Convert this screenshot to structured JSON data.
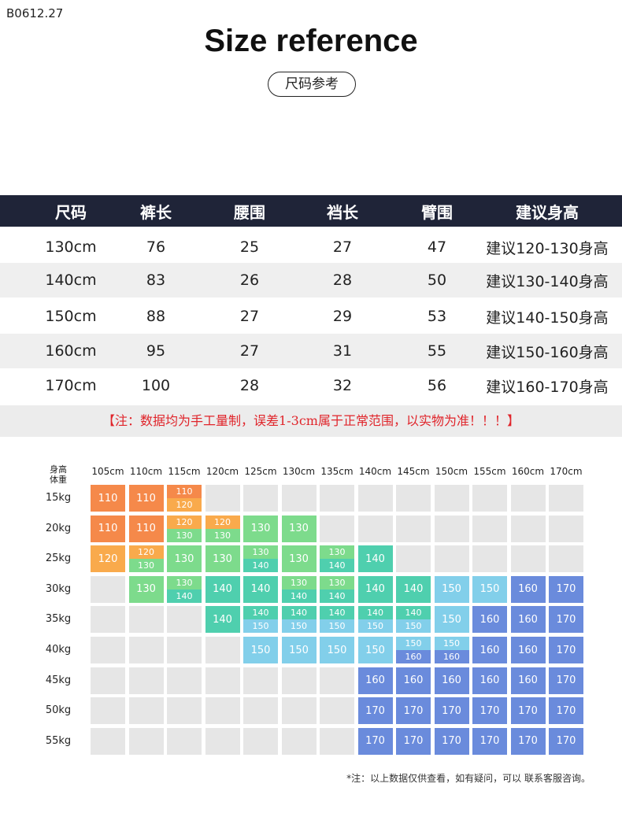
{
  "product_code": "B0612.27",
  "title": "Size reference",
  "subtitle": "尺码参考",
  "table": {
    "headers": [
      "尺码",
      "裤长",
      "腰围",
      "裆长",
      "臂围",
      "建议身高"
    ],
    "rows": [
      [
        "130cm",
        "76",
        "25",
        "27",
        "47",
        "建议120-130身高"
      ],
      [
        "140cm",
        "83",
        "26",
        "28",
        "50",
        "建议130-140身高"
      ],
      [
        "150cm",
        "88",
        "27",
        "29",
        "53",
        "建议140-150身高"
      ],
      [
        "160cm",
        "95",
        "27",
        "31",
        "55",
        "建议150-160身高"
      ],
      [
        "170cm",
        "100",
        "28",
        "32",
        "56",
        "建议160-170身高"
      ]
    ]
  },
  "note": "【注：数据均为手工量制，误差1-3cm属于正常范围，以实物为准！！！】",
  "grid": {
    "corner_top": "身高",
    "corner_bottom": "体重",
    "heights": [
      "105cm",
      "110cm",
      "115cm",
      "120cm",
      "125cm",
      "130cm",
      "135cm",
      "140cm",
      "145cm",
      "150cm",
      "155cm",
      "160cm",
      "170cm"
    ],
    "weights": [
      "15kg",
      "20kg",
      "25kg",
      "30kg",
      "35kg",
      "40kg",
      "45kg",
      "50kg",
      "55kg"
    ],
    "cells": [
      [
        "110",
        "110",
        "110/120",
        "",
        "",
        "",
        "",
        "",
        "",
        "",
        "",
        "",
        ""
      ],
      [
        "110",
        "110",
        "120/130",
        "120/130",
        "130",
        "130",
        "",
        "",
        "",
        "",
        "",
        "",
        ""
      ],
      [
        "120",
        "120/130",
        "130",
        "130",
        "130/140",
        "130",
        "130/140",
        "140",
        "",
        "",
        "",
        "",
        ""
      ],
      [
        "",
        "130",
        "130/140",
        "140",
        "140",
        "130/140",
        "130/140",
        "140",
        "140",
        "150",
        "150",
        "160",
        "170"
      ],
      [
        "",
        "",
        "",
        "140",
        "140/150",
        "140/150",
        "140/150",
        "140/150",
        "140/150",
        "150",
        "160",
        "160",
        "170"
      ],
      [
        "",
        "",
        "",
        "",
        "150",
        "150",
        "150",
        "150",
        "150/160",
        "150/160",
        "160",
        "160",
        "170"
      ],
      [
        "",
        "",
        "",
        "",
        "",
        "",
        "",
        "160",
        "160",
        "160",
        "160",
        "160",
        "170"
      ],
      [
        "",
        "",
        "",
        "",
        "",
        "",
        "",
        "170",
        "170",
        "170",
        "170",
        "170",
        "170"
      ],
      [
        "",
        "",
        "",
        "",
        "",
        "",
        "",
        "170",
        "170",
        "170",
        "170",
        "170",
        "170"
      ]
    ],
    "colors": {
      "110": "#f5894a",
      "120": "#f9aa4c",
      "130": "#7ddb8c",
      "140": "#4fcfae",
      "150": "#82cfea",
      "160": "#6a8bdc",
      "170": "#6a8bdc",
      "empty": "#e6e6e6"
    }
  },
  "footnote": "*注：以上数据仅供查看，如有疑问，可以  联系客服咨询。"
}
